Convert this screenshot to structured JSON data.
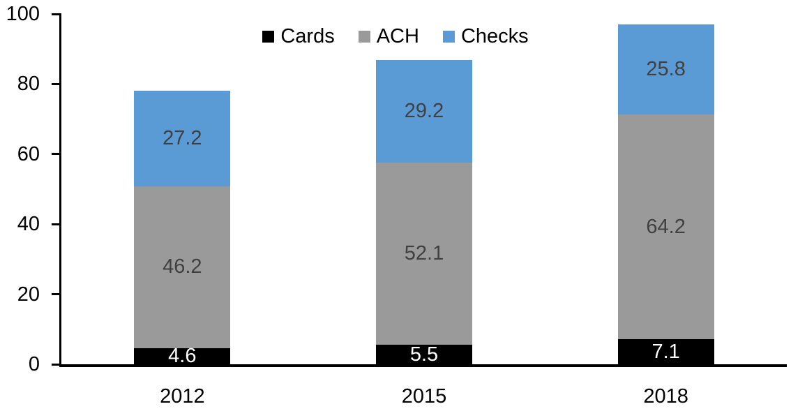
{
  "chart_data": {
    "type": "bar",
    "stacked": true,
    "categories": [
      "2012",
      "2015",
      "2018"
    ],
    "series": [
      {
        "name": "Cards",
        "values": [
          4.6,
          5.5,
          7.1
        ],
        "color": "#000000",
        "label_color": "#ffffff"
      },
      {
        "name": "ACH",
        "values": [
          46.2,
          52.1,
          64.2
        ],
        "color": "#9A9A9A",
        "label_color": "#404040"
      },
      {
        "name": "Checks",
        "values": [
          27.2,
          29.2,
          25.8
        ],
        "color": "#5B9BD5",
        "label_color": "#404040"
      }
    ],
    "totals": [
      78.0,
      86.8,
      97.1
    ],
    "ylim": [
      0,
      100
    ],
    "yticks": [
      "0",
      "20",
      "40",
      "60",
      "80",
      "100"
    ],
    "xlabel": "",
    "ylabel": "",
    "title": "",
    "legend_position": "top-center",
    "grid": false,
    "axis_color": "#000000",
    "background_color": "#ffffff"
  }
}
